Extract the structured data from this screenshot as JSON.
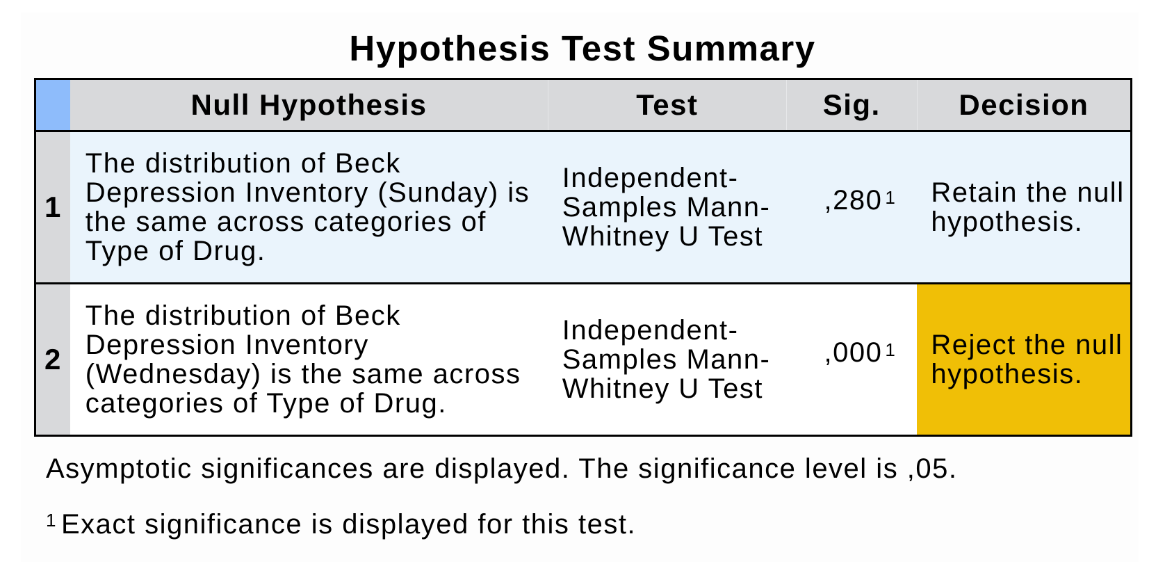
{
  "title": "Hypothesis Test Summary",
  "table": {
    "headers": {
      "null_hypothesis": "Null Hypothesis",
      "test": "Test",
      "sig": "Sig.",
      "decision": "Decision"
    },
    "rows": [
      {
        "number": "1",
        "null_hypothesis": "The distribution of Beck Depression Inventory (Sunday) is the same across categories of Type of Drug.",
        "test": "Independent-Samples Mann-Whitney U Test",
        "sig": ",280",
        "sig_footnote": "1",
        "decision": "Retain the null hypothesis."
      },
      {
        "number": "2",
        "null_hypothesis": "The distribution of Beck Depression Inventory (Wednesday) is the same across categories of Type of Drug.",
        "test": "Independent-Samples Mann-Whitney U Test",
        "sig": ",000",
        "sig_footnote": "1",
        "decision": "Reject the null hypothesis."
      }
    ]
  },
  "notes": {
    "significance_note": "Asymptotic significances are displayed.  The significance level is ,05.",
    "footnote_marker": "1",
    "footnote_text": "Exact significance is displayed for this test."
  },
  "colors": {
    "header_background": "#d8d9db",
    "corner_cell": "#8ebcfb",
    "row1_background": "#eaf4fc",
    "reject_highlight": "#f0bf06"
  }
}
